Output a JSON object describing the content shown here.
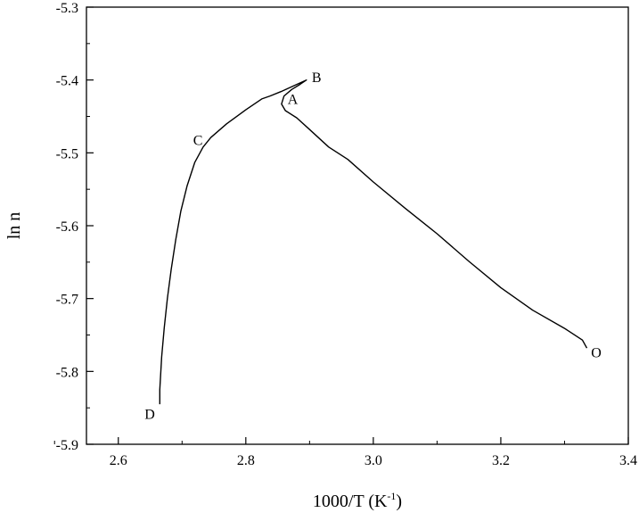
{
  "chart_data": {
    "type": "line",
    "title": "",
    "xlabel": "1000/T (K",
    "xlabel_superscript": "-1",
    "xlabel_suffix": ")",
    "ylabel": "ln n",
    "xlim": [
      2.55,
      3.4
    ],
    "ylim": [
      -5.9,
      -5.3
    ],
    "x_ticks": [
      2.6,
      2.8,
      3.0,
      3.2,
      3.4
    ],
    "x_tick_labels": [
      "2.6",
      "2.8",
      "3.0",
      "3.2",
      "3.4"
    ],
    "y_ticks": [
      -5.3,
      -5.4,
      -5.5,
      -5.6,
      -5.7,
      -5.8,
      -5.9
    ],
    "y_tick_labels": [
      "-5.3",
      "-5.4",
      "-5.5",
      "-5.6",
      "-5.7",
      "-5.8",
      "-5.9"
    ],
    "grid": false,
    "colors": {
      "line": "#000000",
      "axis": "#000000"
    },
    "series": [
      {
        "values_xy": [
          [
            3.335,
            -5.768
          ],
          [
            3.328,
            -5.757
          ],
          [
            3.3,
            -5.741
          ],
          [
            3.25,
            -5.716
          ],
          [
            3.2,
            -5.685
          ],
          [
            3.15,
            -5.649
          ],
          [
            3.1,
            -5.611
          ],
          [
            3.05,
            -5.576
          ],
          [
            3.0,
            -5.54
          ],
          [
            2.96,
            -5.509
          ],
          [
            2.93,
            -5.492
          ],
          [
            2.9,
            -5.468
          ],
          [
            2.88,
            -5.452
          ],
          [
            2.862,
            -5.442
          ],
          [
            2.856,
            -5.433
          ],
          [
            2.86,
            -5.422
          ],
          [
            2.872,
            -5.413
          ],
          [
            2.885,
            -5.406
          ],
          [
            2.895,
            -5.4
          ],
          [
            2.88,
            -5.406
          ],
          [
            2.855,
            -5.416
          ],
          [
            2.838,
            -5.422
          ],
          [
            2.825,
            -5.426
          ],
          [
            2.8,
            -5.441
          ],
          [
            2.77,
            -5.46
          ],
          [
            2.745,
            -5.479
          ],
          [
            2.733,
            -5.492
          ],
          [
            2.72,
            -5.513
          ],
          [
            2.708,
            -5.545
          ],
          [
            2.698,
            -5.58
          ],
          [
            2.69,
            -5.62
          ],
          [
            2.683,
            -5.66
          ],
          [
            2.677,
            -5.7
          ],
          [
            2.672,
            -5.74
          ],
          [
            2.668,
            -5.78
          ],
          [
            2.665,
            -5.825
          ],
          [
            2.665,
            -5.845
          ]
        ]
      }
    ],
    "annotations": [
      {
        "text": "O",
        "x": 3.336,
        "y": -5.773
      },
      {
        "text": "A",
        "x": 2.86,
        "y": -5.433
      },
      {
        "text": "B",
        "x": 2.898,
        "y": -5.398
      },
      {
        "text": "C",
        "x": 2.738,
        "y": -5.487
      },
      {
        "text": "D",
        "x": 2.663,
        "y": -5.853
      }
    ]
  }
}
